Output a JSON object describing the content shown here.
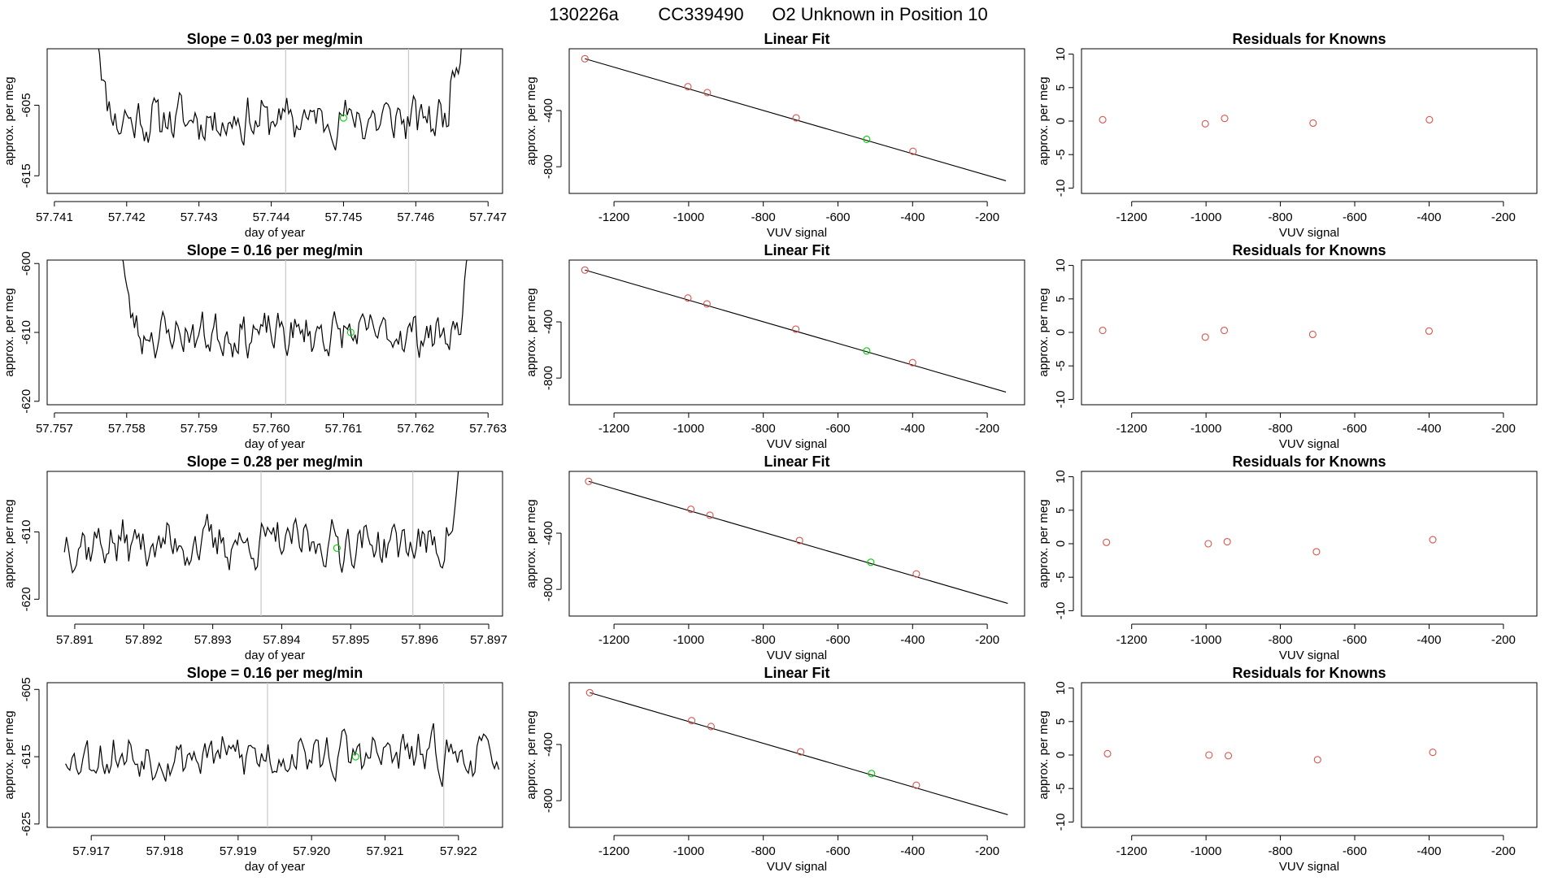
{
  "title": {
    "date": "130226a",
    "tank": "CC339490",
    "desc": "O2 Unknown in Position  10"
  },
  "chart_data": [
    {
      "type": "line",
      "title": "Slope =  0.03  per meg/min",
      "xlabel": "day of year",
      "ylabel": "approx. per meg",
      "xlim": [
        57.7409,
        57.7472
      ],
      "ylim": [
        -617.5,
        -597
      ],
      "xticks": [
        57.741,
        57.742,
        57.743,
        57.744,
        57.745,
        57.746,
        57.747
      ],
      "xtick_labels": [
        "57.741",
        "57.742",
        "57.743",
        "57.744",
        "57.745",
        "57.746",
        "57.747"
      ],
      "yticks": [
        -605,
        -615
      ],
      "ytick_labels": [
        "-605",
        "-615"
      ],
      "vlines": [
        57.7442,
        57.7459
      ],
      "series": {
        "x_start": 57.74157,
        "x_end": 57.74667,
        "mean": -607.0,
        "amp": 2.8,
        "n": 190,
        "seed": 11,
        "rise_left": 10,
        "rise_right": 12
      },
      "highlight": {
        "x": 57.745,
        "y": -606.8
      }
    },
    {
      "type": "line",
      "title": "Slope =  0.16  per meg/min",
      "xlabel": "day of year",
      "ylabel": "approx. per meg",
      "xlim": [
        57.7569,
        57.7632
      ],
      "ylim": [
        -620.5,
        -599.5
      ],
      "xticks": [
        57.757,
        57.758,
        57.759,
        57.76,
        57.761,
        57.762,
        57.763
      ],
      "xtick_labels": [
        "57.757",
        "57.758",
        "57.759",
        "57.760",
        "57.761",
        "57.762",
        "57.763"
      ],
      "yticks": [
        -600,
        -610,
        -620
      ],
      "ytick_labels": [
        "-600",
        "-610",
        "-620"
      ],
      "vlines": [
        57.7602,
        57.762
      ],
      "series": {
        "x_start": 57.7579,
        "x_end": 57.76283,
        "mean": -610.2,
        "amp": 2.6,
        "n": 190,
        "seed": 23,
        "rise_left": 10,
        "rise_right": 12
      },
      "highlight": {
        "x": 57.7611,
        "y": -610.0
      }
    },
    {
      "type": "line",
      "title": "Slope =  0.28  per meg/min",
      "xlabel": "day of year",
      "ylabel": "approx. per meg",
      "xlim": [
        57.8906,
        57.8972
      ],
      "ylim": [
        -622.5,
        -601
      ],
      "xticks": [
        57.891,
        57.892,
        57.893,
        57.894,
        57.895,
        57.896,
        57.897
      ],
      "xtick_labels": [
        "57.891",
        "57.892",
        "57.893",
        "57.894",
        "57.895",
        "57.896",
        "57.897"
      ],
      "yticks": [
        -610,
        -620
      ],
      "ytick_labels": [
        "-610",
        "-620"
      ],
      "vlines": [
        57.8937,
        57.8959
      ],
      "series": {
        "x_start": 57.89085,
        "x_end": 57.89665,
        "mean": -611.7,
        "amp": 3.0,
        "n": 200,
        "seed": 37,
        "rise_left": 0,
        "rise_right": 10
      },
      "highlight": {
        "x": 57.8948,
        "y": -612.4
      }
    },
    {
      "type": "line",
      "title": "Slope =  0.16  per meg/min",
      "xlabel": "day of year",
      "ylabel": "approx. per meg",
      "xlim": [
        57.9164,
        57.9226
      ],
      "ylim": [
        -625.5,
        -604
      ],
      "xticks": [
        57.917,
        57.918,
        57.919,
        57.92,
        57.921,
        57.922
      ],
      "xtick_labels": [
        "57.917",
        "57.918",
        "57.919",
        "57.920",
        "57.921",
        "57.922"
      ],
      "yticks": [
        -605,
        -615,
        -625
      ],
      "ytick_labels": [
        "-605",
        "-615",
        "-625"
      ],
      "vlines": [
        57.9194,
        57.9218
      ],
      "series": {
        "x_start": 57.91665,
        "x_end": 57.92255,
        "mean": -614.8,
        "amp": 2.9,
        "n": 200,
        "seed": 53,
        "rise_left": 0,
        "rise_right": 0
      },
      "highlight": {
        "x": 57.9206,
        "y": -615.0
      }
    },
    {
      "type": "scatter",
      "title": "Linear Fit",
      "xlabel": "VUV signal",
      "ylabel": "approx. per meg",
      "xlim": [
        -1320,
        -100
      ],
      "ylim": [
        -990,
        40
      ],
      "xticks": [
        -1200,
        -1000,
        -800,
        -600,
        -400,
        -200
      ],
      "xtick_labels": [
        "-1200",
        "-1000",
        "-800",
        "-600",
        "-400",
        "-200"
      ],
      "yticks": [
        -400,
        -800
      ],
      "ytick_labels": [
        "-400",
        "-800"
      ],
      "points": [
        [
          -1278,
          -31
        ],
        [
          -1002,
          -230
        ],
        [
          -950,
          -272
        ],
        [
          -712,
          -452
        ],
        [
          -399,
          -690
        ]
      ],
      "unknown": [
        -523,
        -605
      ],
      "fit": [
        [
          -1278,
          -31
        ],
        [
          -150,
          -900
        ]
      ]
    },
    {
      "type": "scatter",
      "title": "Linear Fit",
      "xlabel": "VUV signal",
      "ylabel": "approx. per meg",
      "xlim": [
        -1320,
        -100
      ],
      "ylim": [
        -990,
        40
      ],
      "xticks": [
        -1200,
        -1000,
        -800,
        -600,
        -400,
        -200
      ],
      "xtick_labels": [
        "-1200",
        "-1000",
        "-800",
        "-600",
        "-400",
        "-200"
      ],
      "yticks": [
        -400,
        -800
      ],
      "ytick_labels": [
        "-400",
        "-800"
      ],
      "points": [
        [
          -1278,
          -31
        ],
        [
          -1002,
          -230
        ],
        [
          -951,
          -272
        ],
        [
          -713,
          -452
        ],
        [
          -400,
          -690
        ]
      ],
      "unknown": [
        -523,
        -607
      ],
      "fit": [
        [
          -1278,
          -31
        ],
        [
          -150,
          -900
        ]
      ]
    },
    {
      "type": "scatter",
      "title": "Linear Fit",
      "xlabel": "VUV signal",
      "ylabel": "approx. per meg",
      "xlim": [
        -1320,
        -100
      ],
      "ylim": [
        -990,
        40
      ],
      "xticks": [
        -1200,
        -1000,
        -800,
        -600,
        -400,
        -200
      ],
      "xtick_labels": [
        "-1200",
        "-1000",
        "-800",
        "-600",
        "-400",
        "-200"
      ],
      "yticks": [
        -400,
        -800
      ],
      "ytick_labels": [
        "-400",
        "-800"
      ],
      "points": [
        [
          -1268,
          -31
        ],
        [
          -994,
          -230
        ],
        [
          -943,
          -272
        ],
        [
          -703,
          -452
        ],
        [
          -390,
          -690
        ]
      ],
      "unknown": [
        -512,
        -607
      ],
      "fit": [
        [
          -1268,
          -31
        ],
        [
          -145,
          -900
        ]
      ]
    },
    {
      "type": "scatter",
      "title": "Linear Fit",
      "xlabel": "VUV signal",
      "ylabel": "approx. per meg",
      "xlim": [
        -1320,
        -100
      ],
      "ylim": [
        -990,
        40
      ],
      "xticks": [
        -1200,
        -1000,
        -800,
        -600,
        -400,
        -200
      ],
      "xtick_labels": [
        "-1200",
        "-1000",
        "-800",
        "-600",
        "-400",
        "-200"
      ],
      "yticks": [
        -400,
        -800
      ],
      "ytick_labels": [
        "-400",
        "-800"
      ],
      "points": [
        [
          -1265,
          -31
        ],
        [
          -992,
          -230
        ],
        [
          -940,
          -272
        ],
        [
          -700,
          -452
        ],
        [
          -390,
          -690
        ]
      ],
      "unknown": [
        -510,
        -607
      ],
      "fit": [
        [
          -1265,
          -31
        ],
        [
          -145,
          -900
        ]
      ]
    },
    {
      "type": "scatter",
      "title": "Residuals for Knowns",
      "xlabel": "VUV signal",
      "ylabel": "approx. per meg",
      "xlim": [
        -1335,
        -110
      ],
      "ylim": [
        -10.8,
        10.8
      ],
      "xticks": [
        -1200,
        -1000,
        -800,
        -600,
        -400,
        -200
      ],
      "xtick_labels": [
        "-1200",
        "-1000",
        "-800",
        "-600",
        "-400",
        "-200"
      ],
      "yticks": [
        10,
        5,
        0,
        -5,
        -10
      ],
      "ytick_labels": [
        "10",
        "5",
        "0",
        "-5",
        "-10"
      ],
      "points": [
        [
          -1278,
          0.2
        ],
        [
          -1002,
          -0.4
        ],
        [
          -950,
          0.4
        ],
        [
          -712,
          -0.3
        ],
        [
          -399,
          0.2
        ]
      ]
    },
    {
      "type": "scatter",
      "title": "Residuals for Knowns",
      "xlabel": "VUV signal",
      "ylabel": "approx. per meg",
      "xlim": [
        -1335,
        -110
      ],
      "ylim": [
        -10.8,
        10.8
      ],
      "xticks": [
        -1200,
        -1000,
        -800,
        -600,
        -400,
        -200
      ],
      "xtick_labels": [
        "-1200",
        "-1000",
        "-800",
        "-600",
        "-400",
        "-200"
      ],
      "yticks": [
        10,
        5,
        0,
        -5,
        -10
      ],
      "ytick_labels": [
        "10",
        "5",
        "0",
        "-5",
        "-10"
      ],
      "points": [
        [
          -1278,
          0.3
        ],
        [
          -1002,
          -0.7
        ],
        [
          -951,
          0.3
        ],
        [
          -713,
          -0.3
        ],
        [
          -400,
          0.2
        ]
      ]
    },
    {
      "type": "scatter",
      "title": "Residuals for Knowns",
      "xlabel": "VUV signal",
      "ylabel": "approx. per meg",
      "xlim": [
        -1335,
        -110
      ],
      "ylim": [
        -10.8,
        10.8
      ],
      "xticks": [
        -1200,
        -1000,
        -800,
        -600,
        -400,
        -200
      ],
      "xtick_labels": [
        "-1200",
        "-1000",
        "-800",
        "-600",
        "-400",
        "-200"
      ],
      "yticks": [
        10,
        5,
        0,
        -5,
        -10
      ],
      "ytick_labels": [
        "10",
        "5",
        "0",
        "-5",
        "-10"
      ],
      "points": [
        [
          -1268,
          0.2
        ],
        [
          -994,
          0.0
        ],
        [
          -943,
          0.3
        ],
        [
          -703,
          -1.2
        ],
        [
          -390,
          0.6
        ]
      ]
    },
    {
      "type": "scatter",
      "title": "Residuals for Knowns",
      "xlabel": "VUV signal",
      "ylabel": "approx. per meg",
      "xlim": [
        -1335,
        -110
      ],
      "ylim": [
        -10.8,
        10.8
      ],
      "xticks": [
        -1200,
        -1000,
        -800,
        -600,
        -400,
        -200
      ],
      "xtick_labels": [
        "-1200",
        "-1000",
        "-800",
        "-600",
        "-400",
        "-200"
      ],
      "yticks": [
        10,
        5,
        0,
        -5,
        -10
      ],
      "ytick_labels": [
        "10",
        "5",
        "0",
        "-5",
        "-10"
      ],
      "points": [
        [
          -1265,
          0.2
        ],
        [
          -992,
          0.0
        ],
        [
          -940,
          -0.1
        ],
        [
          -700,
          -0.7
        ],
        [
          -390,
          0.4
        ]
      ]
    }
  ],
  "colors": {
    "line": "#000000",
    "known_point": "#d9534f",
    "unknown_point": "#00cc00",
    "vline": "#c8c8c8"
  }
}
